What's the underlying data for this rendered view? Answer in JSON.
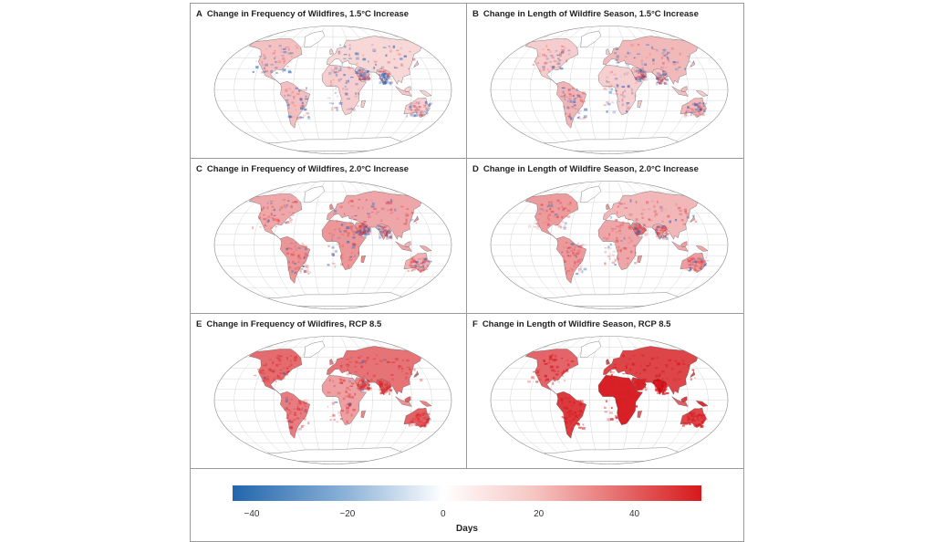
{
  "panels": [
    {
      "letter": "A",
      "title": "Change in Frequency of Wildfires, 1.5°C Increase",
      "intensity": 0.25,
      "mix": 0.55
    },
    {
      "letter": "B",
      "title": "Change in Length of Wildfire Season, 1.5°C Increase",
      "intensity": 0.3,
      "mix": 0.6
    },
    {
      "letter": "C",
      "title": "Change in Frequency of Wildfires, 2.0°C Increase",
      "intensity": 0.45,
      "mix": 0.7
    },
    {
      "letter": "D",
      "title": "Change in Length of Wildfire Season, 2.0°C Increase",
      "intensity": 0.45,
      "mix": 0.85
    },
    {
      "letter": "E",
      "title": "Change in Frequency of Wildfires, RCP 8.5",
      "intensity": 0.6,
      "mix": 0.95
    },
    {
      "letter": "F",
      "title": "Change in Length of Wildfire Season, RCP 8.5",
      "intensity": 0.95,
      "mix": 1.0
    }
  ],
  "colorbar": {
    "label": "Days",
    "min": -44,
    "max": 54,
    "ticks": [
      {
        "value": -40,
        "label": "−40"
      },
      {
        "value": -20,
        "label": "−20"
      },
      {
        "value": 0,
        "label": "0"
      },
      {
        "value": 20,
        "label": "20"
      },
      {
        "value": 40,
        "label": "40"
      }
    ],
    "colors": {
      "negative": "#2166ac",
      "zero": "#ffffff",
      "positive": "#d7191c"
    }
  }
}
